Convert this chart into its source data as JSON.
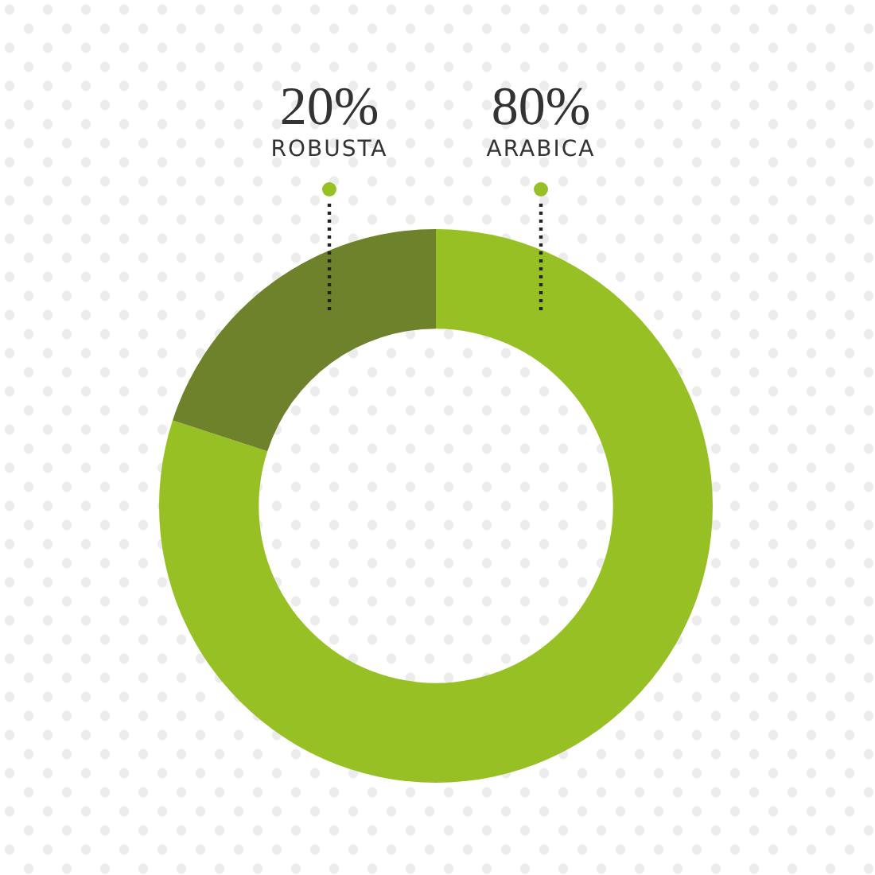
{
  "chart_data": {
    "type": "donut",
    "categories": [
      "ARABICA",
      "ROBUSTA"
    ],
    "values": [
      80,
      20
    ],
    "colors": [
      "#97c024",
      "#6e812b"
    ],
    "value_labels": [
      "80%",
      "20%"
    ]
  }
}
